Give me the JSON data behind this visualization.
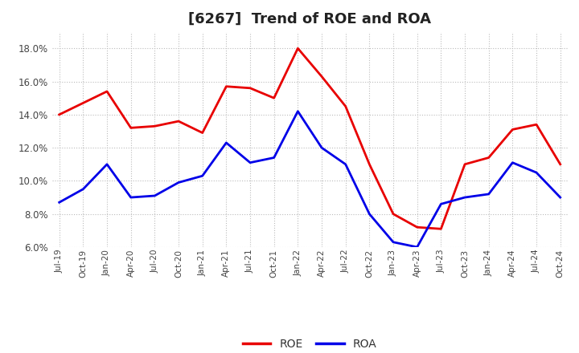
{
  "title": "[6267]  Trend of ROE and ROA",
  "x_labels": [
    "Jul-19",
    "Oct-19",
    "Jan-20",
    "Apr-20",
    "Jul-20",
    "Oct-20",
    "Jan-21",
    "Apr-21",
    "Jul-21",
    "Oct-21",
    "Jan-22",
    "Apr-22",
    "Jul-22",
    "Oct-22",
    "Jan-23",
    "Apr-23",
    "Jul-23",
    "Oct-23",
    "Jan-24",
    "Apr-24",
    "Jul-24",
    "Oct-24"
  ],
  "ROE": [
    14.0,
    14.7,
    15.4,
    13.2,
    13.3,
    13.6,
    12.9,
    15.7,
    15.6,
    15.0,
    18.0,
    16.3,
    14.5,
    11.0,
    8.0,
    7.2,
    7.1,
    11.0,
    11.4,
    13.1,
    13.4,
    11.0
  ],
  "ROA": [
    8.7,
    9.5,
    11.0,
    9.0,
    9.1,
    9.9,
    10.3,
    12.3,
    11.1,
    11.4,
    14.2,
    12.0,
    11.0,
    8.0,
    6.3,
    6.0,
    8.6,
    9.0,
    9.2,
    11.1,
    10.5,
    9.0
  ],
  "roe_color": "#e80000",
  "roa_color": "#0000e8",
  "ylim": [
    6.0,
    19.0
  ],
  "yticks": [
    6.0,
    8.0,
    10.0,
    12.0,
    14.0,
    16.0,
    18.0
  ],
  "background_color": "#ffffff",
  "grid_color": "#bbbbbb",
  "title_fontsize": 13,
  "legend_labels": [
    "ROE",
    "ROA"
  ]
}
